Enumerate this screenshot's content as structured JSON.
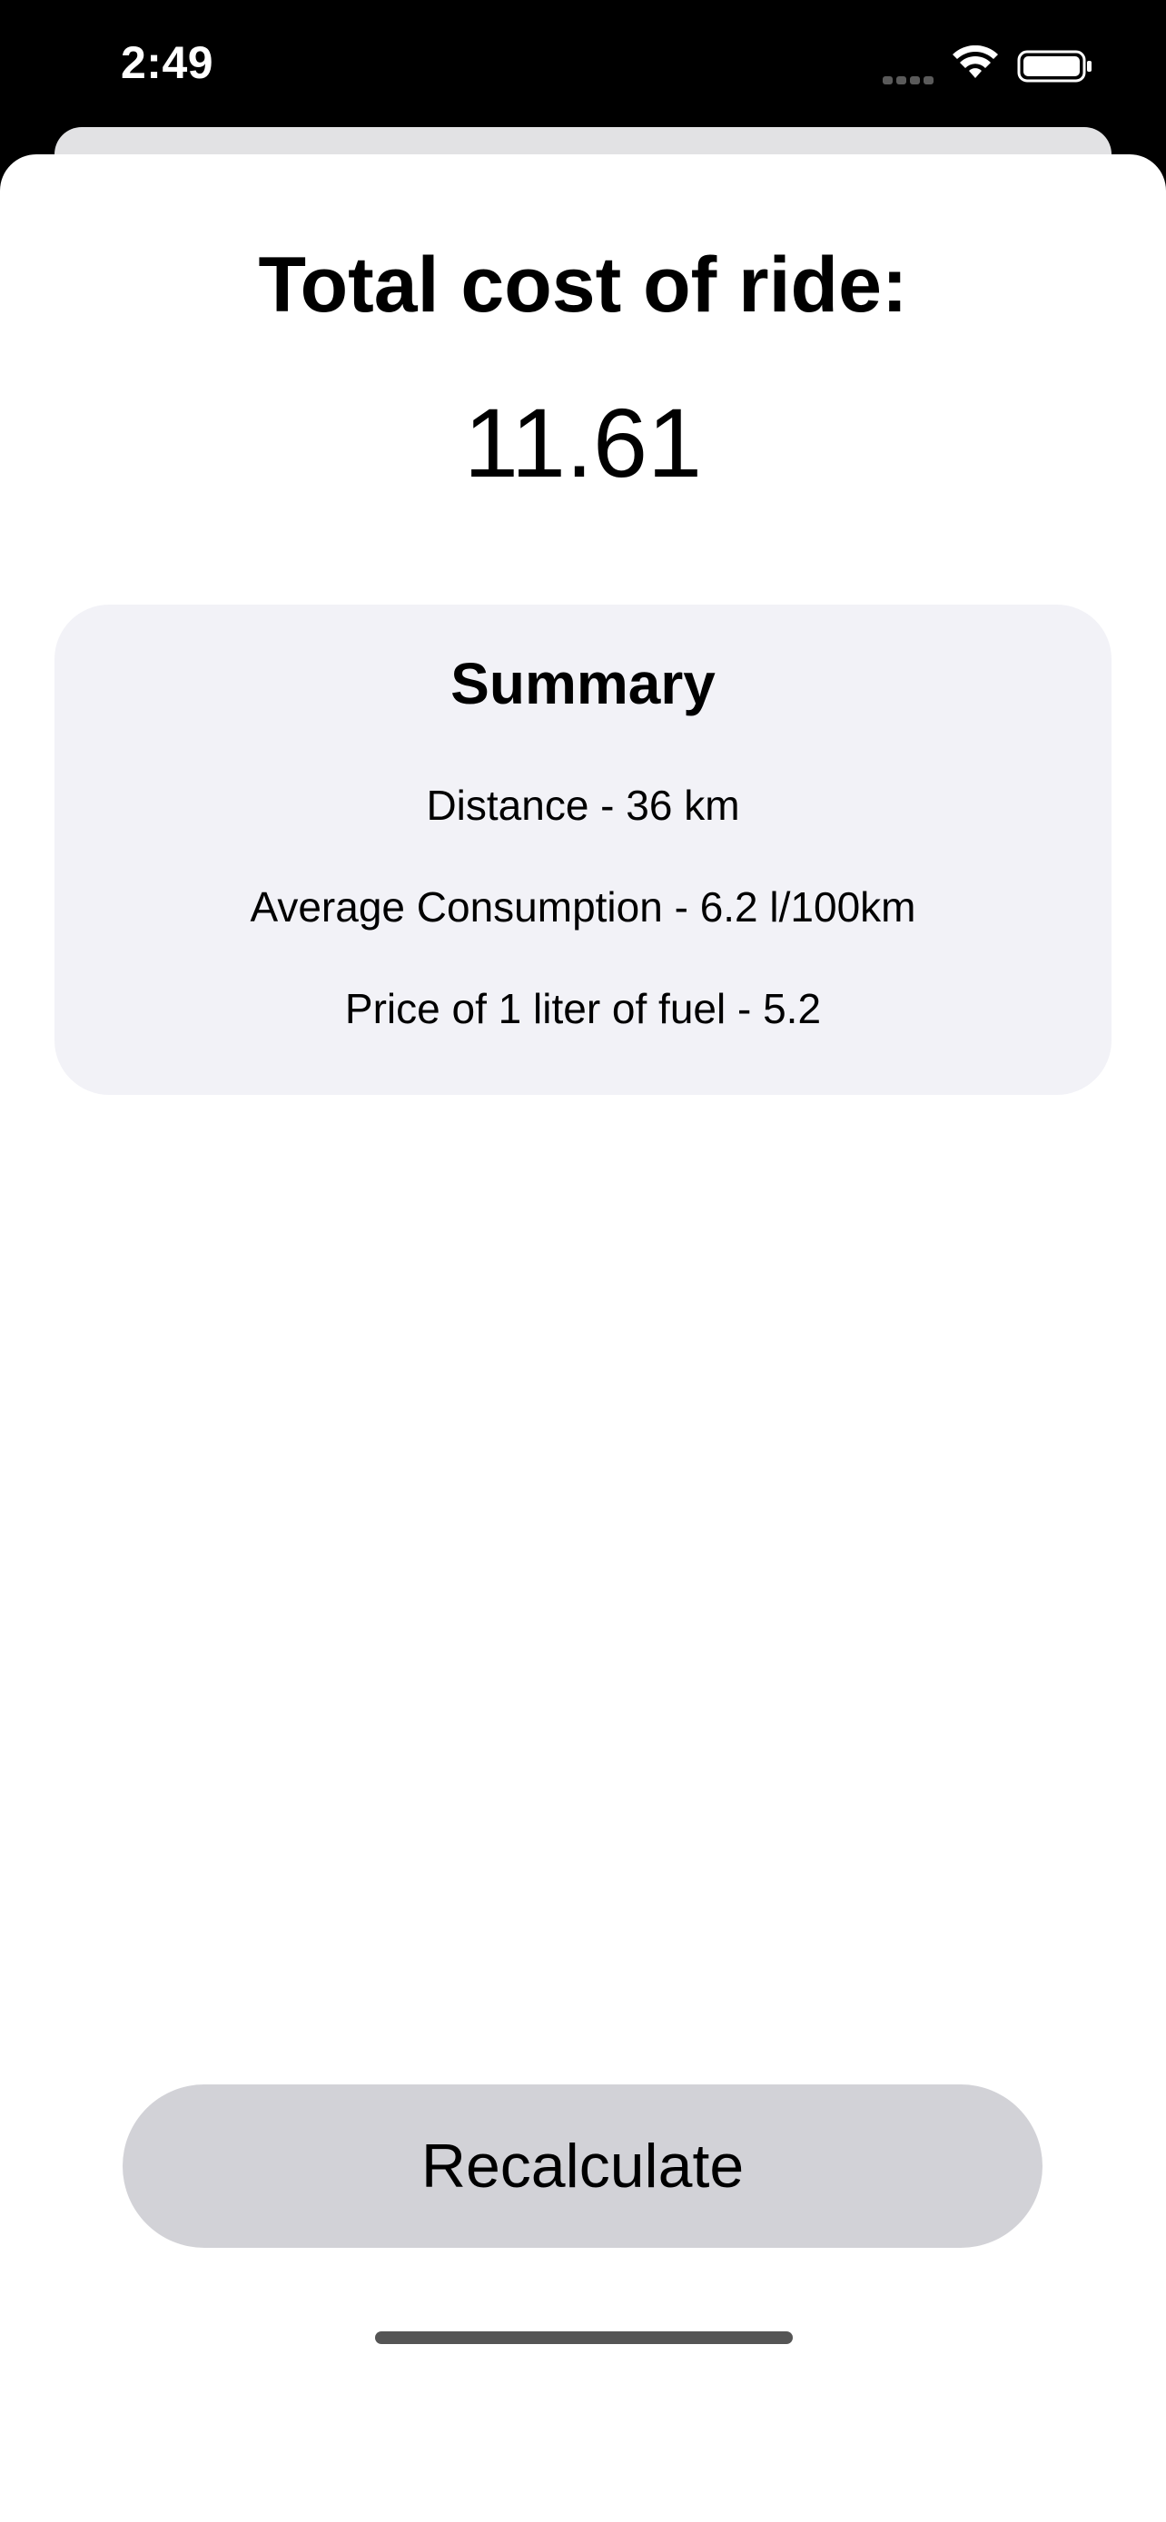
{
  "status_bar": {
    "time": "2:49",
    "icons": [
      "cellular-signal-icon",
      "wifi-icon",
      "battery-icon"
    ]
  },
  "result": {
    "title": "Total cost of ride:",
    "value": "11.61"
  },
  "summary": {
    "title": "Summary",
    "lines": [
      "Distance - 36 km",
      "Average Consumption - 6.2 l/100km",
      "Price of 1 liter of fuel - 5.2"
    ]
  },
  "actions": {
    "recalculate_label": "Recalculate"
  },
  "colors": {
    "sheet_background": "#ffffff",
    "card_background": "#f2f2f7",
    "button_background": "#d2d2d7",
    "status_bar_background": "#000000"
  }
}
